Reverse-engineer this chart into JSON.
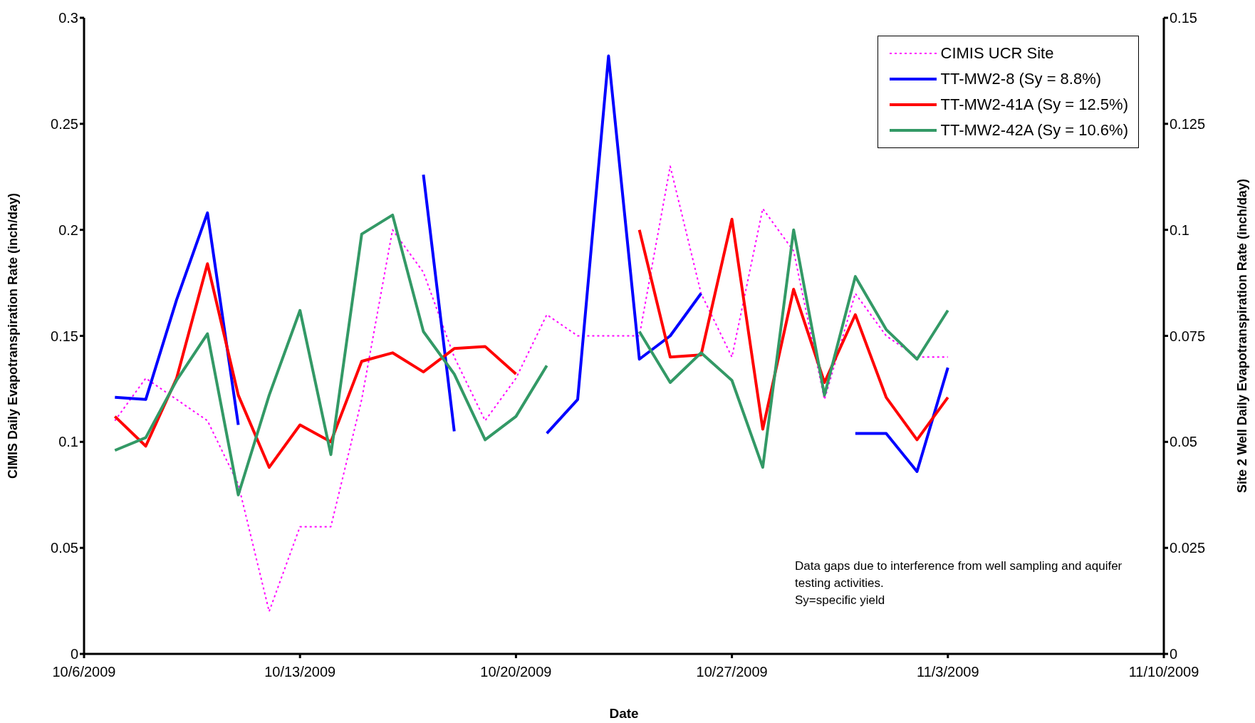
{
  "chart_data": {
    "type": "line",
    "xlabel": "Date",
    "ylabel": "CIMIS Daily Evapotranspiration Rate (inch/day)",
    "y2label": "Site 2 Well Daily Evapotranspiration Rate (inch/day)",
    "x": [
      "2009-10-07",
      "2009-10-08",
      "2009-10-09",
      "2009-10-10",
      "2009-10-11",
      "2009-10-12",
      "2009-10-13",
      "2009-10-14",
      "2009-10-15",
      "2009-10-16",
      "2009-10-17",
      "2009-10-18",
      "2009-10-19",
      "2009-10-20",
      "2009-10-21",
      "2009-10-22",
      "2009-10-23",
      "2009-10-24",
      "2009-10-25",
      "2009-10-26",
      "2009-10-27",
      "2009-10-28",
      "2009-10-29",
      "2009-10-30",
      "2009-10-31",
      "2009-11-01",
      "2009-11-02",
      "2009-11-03"
    ],
    "series": [
      {
        "name": "CIMIS UCR Site",
        "color": "#ff00ff",
        "line_style": "dotted",
        "values": [
          0.11,
          0.13,
          0.12,
          0.11,
          0.08,
          0.02,
          0.06,
          0.06,
          0.12,
          0.2,
          0.18,
          0.14,
          0.11,
          0.13,
          0.16,
          0.15,
          0.15,
          0.15,
          0.23,
          0.17,
          0.14,
          0.21,
          0.19,
          0.12,
          0.17,
          0.15,
          0.14,
          0.14
        ]
      },
      {
        "name": "TT-MW2-8 (Sy = 8.8%)",
        "color": "#0000ff",
        "axis": "y2",
        "line_style": "solid",
        "values": [
          0.0605,
          0.06,
          0.0835,
          0.104,
          0.054,
          null,
          null,
          null,
          null,
          null,
          0.113,
          0.0525,
          null,
          null,
          0.052,
          0.06,
          0.141,
          0.0695,
          0.075,
          0.085,
          null,
          null,
          null,
          null,
          0.052,
          0.052,
          0.043,
          0.0675
        ]
      },
      {
        "name": "TT-MW2-41A (Sy = 12.5%)",
        "color": "#ff0000",
        "axis": "y2",
        "line_style": "solid",
        "values": [
          0.056,
          0.049,
          0.065,
          0.092,
          0.061,
          0.044,
          0.054,
          0.05,
          0.069,
          0.071,
          0.0665,
          0.072,
          0.0725,
          0.066,
          null,
          null,
          null,
          0.1,
          0.07,
          0.0705,
          0.1025,
          0.053,
          0.086,
          0.064,
          0.08,
          0.0605,
          0.0505,
          0.0605
        ]
      },
      {
        "name": "TT-MW2-42A (Sy = 10.6%)",
        "color": "#339966",
        "axis": "y2",
        "line_style": "solid",
        "values": [
          0.048,
          0.051,
          0.0645,
          0.0755,
          0.0375,
          0.061,
          0.081,
          0.047,
          0.099,
          0.1035,
          0.076,
          0.066,
          0.0505,
          0.056,
          0.068,
          null,
          null,
          0.076,
          0.064,
          0.071,
          0.0645,
          0.044,
          0.1,
          0.061,
          0.089,
          0.0765,
          0.0695,
          0.081
        ]
      }
    ],
    "xlim": [
      "2009-10-06",
      "2009-11-10"
    ],
    "xticks": [
      {
        "value": "2009-10-06",
        "label": "10/6/2009"
      },
      {
        "value": "2009-10-13",
        "label": "10/13/2009"
      },
      {
        "value": "2009-10-20",
        "label": "10/20/2009"
      },
      {
        "value": "2009-10-27",
        "label": "10/27/2009"
      },
      {
        "value": "2009-11-03",
        "label": "11/3/2009"
      },
      {
        "value": "2009-11-10",
        "label": "11/10/2009"
      }
    ],
    "ylim": [
      0,
      0.3
    ],
    "yticks": [
      0,
      0.05,
      0.1,
      0.15,
      0.2,
      0.25,
      0.3
    ],
    "y2lim": [
      0,
      0.15
    ],
    "y2ticks": [
      0,
      0.025,
      0.05,
      0.075,
      0.1,
      0.125,
      0.15
    ],
    "grid": false,
    "legend": "top right",
    "marker": "none",
    "annotations": [
      "Data gaps due to interference from well sampling and aquifer testing activities.",
      "Sy=specific yield"
    ]
  }
}
